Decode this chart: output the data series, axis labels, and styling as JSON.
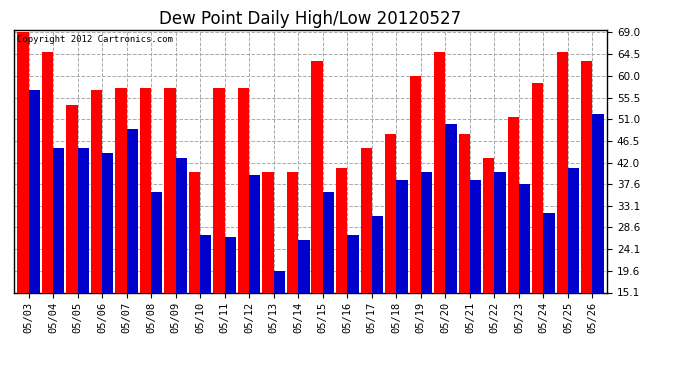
{
  "title": "Dew Point Daily High/Low 20120527",
  "copyright": "Copyright 2012 Cartronics.com",
  "dates": [
    "05/03",
    "05/04",
    "05/05",
    "05/06",
    "05/07",
    "05/08",
    "05/09",
    "05/10",
    "05/11",
    "05/12",
    "05/13",
    "05/14",
    "05/15",
    "05/16",
    "05/17",
    "05/18",
    "05/19",
    "05/20",
    "05/21",
    "05/22",
    "05/23",
    "05/24",
    "05/25",
    "05/26"
  ],
  "highs": [
    69.0,
    65.0,
    54.0,
    57.0,
    57.5,
    57.5,
    57.5,
    40.0,
    57.5,
    57.5,
    40.0,
    40.0,
    63.0,
    41.0,
    45.0,
    48.0,
    60.0,
    65.0,
    48.0,
    43.0,
    51.5,
    58.5,
    65.0,
    63.0
  ],
  "lows": [
    57.0,
    45.0,
    45.0,
    44.0,
    49.0,
    36.0,
    43.0,
    27.0,
    26.5,
    39.5,
    19.5,
    26.0,
    36.0,
    27.0,
    31.0,
    38.5,
    40.0,
    50.0,
    38.5,
    40.0,
    37.5,
    31.5,
    41.0,
    52.0
  ],
  "high_color": "#ff0000",
  "low_color": "#0000cc",
  "background_color": "#ffffff",
  "plot_bg_color": "#ffffff",
  "grid_color": "#aaaaaa",
  "ymin": 15.1,
  "ymax": 69.0,
  "yticks": [
    15.1,
    19.6,
    24.1,
    28.6,
    33.1,
    37.6,
    42.0,
    46.5,
    51.0,
    55.5,
    60.0,
    64.5,
    69.0
  ],
  "bar_width": 0.46,
  "title_fontsize": 12,
  "tick_fontsize": 7.5,
  "copyright_fontsize": 6.5
}
